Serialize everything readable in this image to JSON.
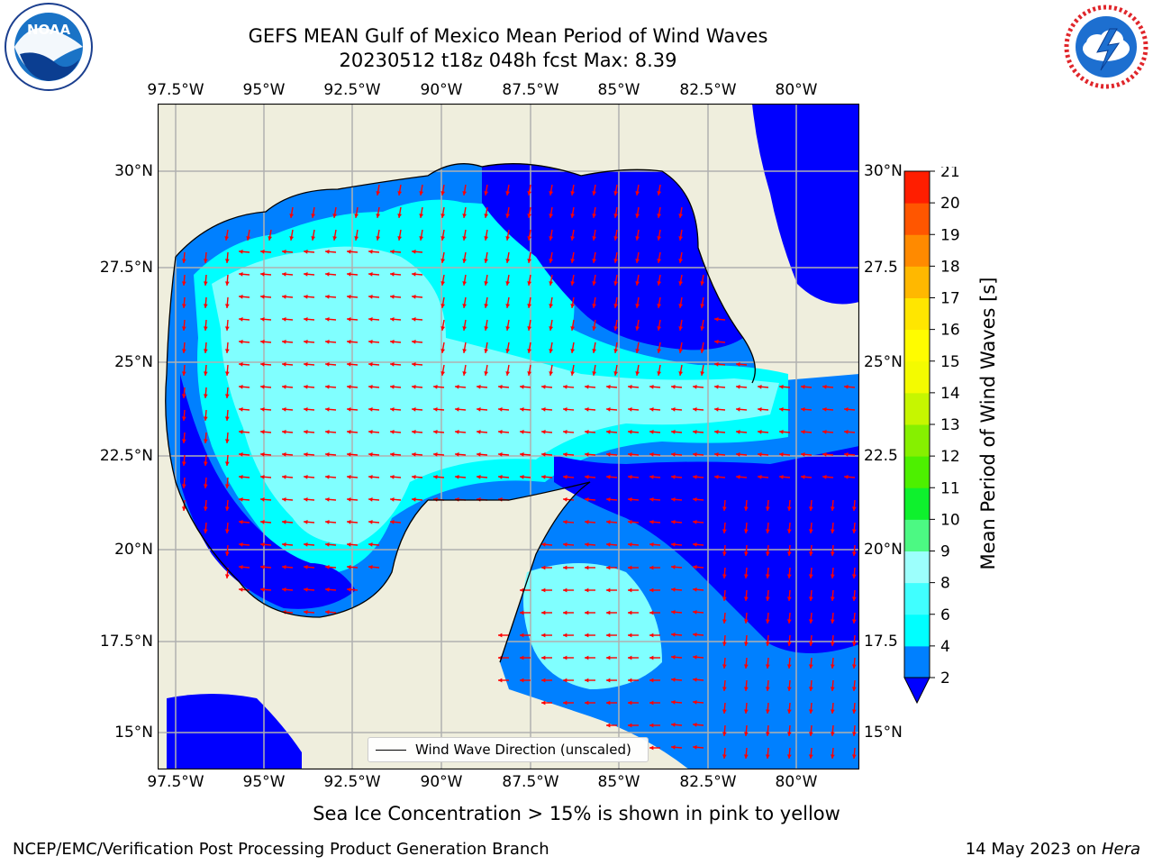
{
  "header": {
    "title": "GEFS MEAN Gulf of Mexico Mean Period of Wind Waves",
    "subtitle": "20230512 t18z 048h fcst   Max: 8.39"
  },
  "map": {
    "lon_ticks": [
      "97.5°W",
      "95°W",
      "92.5°W",
      "90°W",
      "87.5°W",
      "85°W",
      "82.5°W",
      "80°W"
    ],
    "lat_ticks_left": [
      "30°N",
      "27.5°N",
      "25°N",
      "22.5°N",
      "20°N",
      "17.5°N",
      "15°N"
    ],
    "lat_ticks_right": [
      "30°N",
      "27.5",
      "25°N",
      "22.5",
      "20°N",
      "17.5",
      "15°N"
    ],
    "legend_label": "Wind Wave Direction (unscaled)",
    "colors": {
      "land": "#efeedd",
      "level_2": "#0000ff",
      "level_4": "#0080ff",
      "level_6": "#00ffff",
      "level_8": "#80ffff",
      "arrow": "#ff0000",
      "grid": "#b0b0b0"
    }
  },
  "colorbar": {
    "label": "Mean Period of Wind Waves [s]",
    "ticks": [
      "2",
      "4",
      "6",
      "8",
      "9",
      "10",
      "11",
      "12",
      "13",
      "14",
      "15",
      "16",
      "17",
      "18",
      "19",
      "20",
      "21"
    ],
    "colors": [
      "#0080ff",
      "#00ffff",
      "#40ffff",
      "#9cfffc",
      "#4cf983",
      "#0ef12d",
      "#4df000",
      "#86f000",
      "#c6f600",
      "#f4fb00",
      "#fffc00",
      "#ffe600",
      "#ffb800",
      "#ff8a00",
      "#ff5600",
      "#ff1e00"
    ],
    "under_color": "#0000ff"
  },
  "caption": "Sea Ice Concentration > 15% is shown in pink to yellow",
  "footer": {
    "org": "NCEP/EMC/Verification Post Processing Product Generation Branch",
    "date": "14 May 2023 on",
    "host": "Hera"
  },
  "logos": {
    "left_icon": "noaa-logo-icon",
    "right_icon": "nws-logo-icon",
    "left_lettering": "NOAA",
    "right_lettering": "NATIONAL WEATHER SERVICE"
  }
}
